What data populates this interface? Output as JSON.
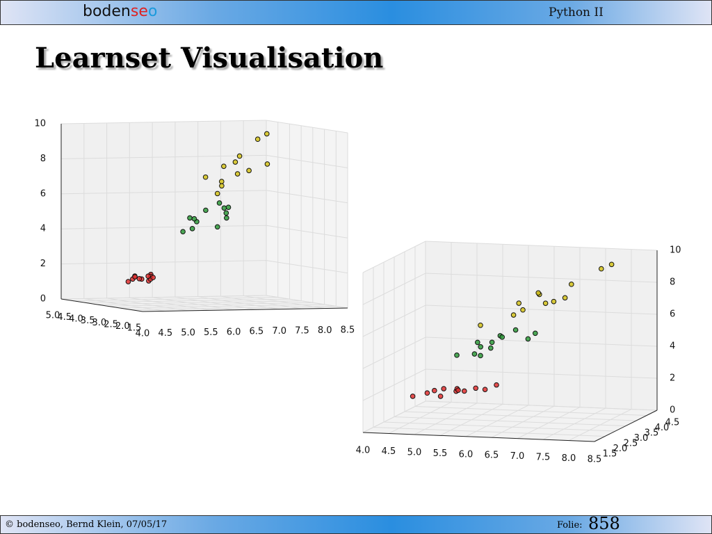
{
  "header": {
    "logo": [
      "boden",
      "se",
      "o"
    ],
    "course": "Python II",
    "title": "Learnset Visualisation"
  },
  "footer": {
    "copyright": "© bodenseo, Bernd Klein, 07/05/17",
    "slide_label": "Folie:",
    "slide_number": "858"
  },
  "chart_data": [
    {
      "type": "scatter3d",
      "xlim": [
        4,
        8.5
      ],
      "ylim": [
        1.5,
        5
      ],
      "zlim": [
        0,
        10
      ],
      "xticks": [
        {
          "value": 4,
          "label": "4.0"
        },
        {
          "value": 4.5,
          "label": "4.5"
        },
        {
          "value": 5,
          "label": "5.0"
        },
        {
          "value": 5.5,
          "label": "5.5"
        },
        {
          "value": 6,
          "label": "6.0"
        },
        {
          "value": 6.5,
          "label": "6.5"
        },
        {
          "value": 7,
          "label": "7.0"
        },
        {
          "value": 7.5,
          "label": "7.5"
        },
        {
          "value": 8,
          "label": "8.0"
        },
        {
          "value": 8.5,
          "label": "8.5"
        }
      ],
      "yticks": [
        {
          "value": 1.5,
          "label": "1.5"
        },
        {
          "value": 2,
          "label": "2.0"
        },
        {
          "value": 2.5,
          "label": "2.5"
        },
        {
          "value": 3,
          "label": "3.0"
        },
        {
          "value": 3.5,
          "label": "3.5"
        },
        {
          "value": 4,
          "label": "4.0"
        },
        {
          "value": 4.5,
          "label": "4.5"
        },
        {
          "value": 5,
          "label": "5.0"
        }
      ],
      "zticks": [
        0,
        2,
        4,
        6,
        8,
        10
      ],
      "series": [
        {
          "color": "#e03030",
          "x": [
            4.6,
            4.8,
            5.0,
            5.1,
            4.9,
            5.3,
            5.4,
            5.2,
            4.7,
            5.0,
            5.5,
            4.4
          ],
          "y": [
            3.1,
            3.4,
            3.5,
            3.3,
            3.0,
            3.7,
            3.9,
            3.4,
            3.2,
            3.6,
            4.2,
            2.9
          ],
          "z": [
            1.5,
            1.6,
            1.4,
            1.7,
            1.4,
            1.5,
            1.3,
            1.5,
            1.6,
            1.4,
            1.4,
            1.4
          ]
        },
        {
          "color": "#2e9a3a",
          "x": [
            5.5,
            5.7,
            6.0,
            6.1,
            6.3,
            5.8,
            6.6,
            6.7,
            5.6,
            6.2,
            5.9,
            6.4
          ],
          "y": [
            2.3,
            2.8,
            2.2,
            2.9,
            2.5,
            2.7,
            3.0,
            3.1,
            2.9,
            2.2,
            3.0,
            2.9
          ],
          "z": [
            4.5,
            5.0,
            4.6,
            5.4,
            5.6,
            4.8,
            5.2,
            5.5,
            4.2,
            5.1,
            4.9,
            5.8
          ]
        },
        {
          "color": "#d4c21a",
          "x": [
            6.3,
            6.5,
            7.1,
            7.2,
            7.7,
            6.4,
            6.9,
            6.7,
            7.4,
            7.9,
            6.0,
            6.8
          ],
          "y": [
            3.3,
            3.0,
            3.0,
            3.6,
            3.8,
            2.8,
            3.1,
            3.3,
            2.8,
            3.8,
            2.2,
            3.0
          ],
          "z": [
            7.2,
            7.0,
            7.6,
            8.3,
            9.2,
            6.8,
            7.4,
            7.8,
            8.0,
            9.5,
            6.5,
            8.1
          ]
        }
      ]
    },
    {
      "type": "scatter3d",
      "xlim": [
        4,
        8.5
      ],
      "ylim": [
        1.5,
        4.5
      ],
      "zlim": [
        0,
        10
      ],
      "xticks": [
        {
          "value": 4,
          "label": "4.0"
        },
        {
          "value": 4.5,
          "label": "4.5"
        },
        {
          "value": 5,
          "label": "5.0"
        },
        {
          "value": 5.5,
          "label": "5.5"
        },
        {
          "value": 6,
          "label": "6.0"
        },
        {
          "value": 6.5,
          "label": "6.5"
        },
        {
          "value": 7,
          "label": "7.0"
        },
        {
          "value": 7.5,
          "label": "7.5"
        },
        {
          "value": 8,
          "label": "8.0"
        },
        {
          "value": 8.5,
          "label": "8.5"
        }
      ],
      "yticks": [
        {
          "value": 1.5,
          "label": "1.5"
        },
        {
          "value": 2,
          "label": "2.0"
        },
        {
          "value": 2.5,
          "label": "2.5"
        },
        {
          "value": 3,
          "label": "3.0"
        },
        {
          "value": 3.5,
          "label": "3.5"
        },
        {
          "value": 4,
          "label": "4.0"
        },
        {
          "value": 4.5,
          "label": "4.5"
        }
      ],
      "zticks": [
        0,
        2,
        4,
        6,
        8,
        10
      ],
      "series": [
        {
          "color": "#e03030",
          "x": [
            4.6,
            4.8,
            5.0,
            5.1,
            4.9,
            5.3,
            5.4,
            5.2,
            4.7,
            5.0,
            5.5,
            4.4
          ],
          "y": [
            3.1,
            3.4,
            3.5,
            3.3,
            3.0,
            3.7,
            3.9,
            3.4,
            3.2,
            3.6,
            4.2,
            2.9
          ],
          "z": [
            1.5,
            1.6,
            1.4,
            1.7,
            1.4,
            1.5,
            1.3,
            1.5,
            1.6,
            1.4,
            1.4,
            1.4
          ]
        },
        {
          "color": "#2e9a3a",
          "x": [
            5.5,
            5.7,
            6.0,
            6.1,
            6.3,
            5.8,
            6.6,
            6.7,
            5.6,
            6.2,
            5.9,
            6.4
          ],
          "y": [
            2.3,
            2.8,
            2.2,
            2.9,
            2.5,
            2.7,
            3.0,
            3.1,
            2.9,
            2.2,
            3.0,
            2.9
          ],
          "z": [
            4.5,
            5.0,
            4.6,
            5.4,
            5.6,
            4.8,
            5.2,
            5.5,
            4.2,
            5.1,
            4.9,
            5.8
          ]
        },
        {
          "color": "#d4c21a",
          "x": [
            6.3,
            6.5,
            7.1,
            7.2,
            7.7,
            6.4,
            6.9,
            6.7,
            7.4,
            7.9,
            6.0,
            6.8
          ],
          "y": [
            3.3,
            3.0,
            3.0,
            3.6,
            3.8,
            2.8,
            3.1,
            3.3,
            2.8,
            3.8,
            2.2,
            3.0
          ],
          "z": [
            7.2,
            7.0,
            7.6,
            8.3,
            9.2,
            6.8,
            7.4,
            7.8,
            8.0,
            9.5,
            6.5,
            8.1
          ]
        }
      ]
    }
  ]
}
